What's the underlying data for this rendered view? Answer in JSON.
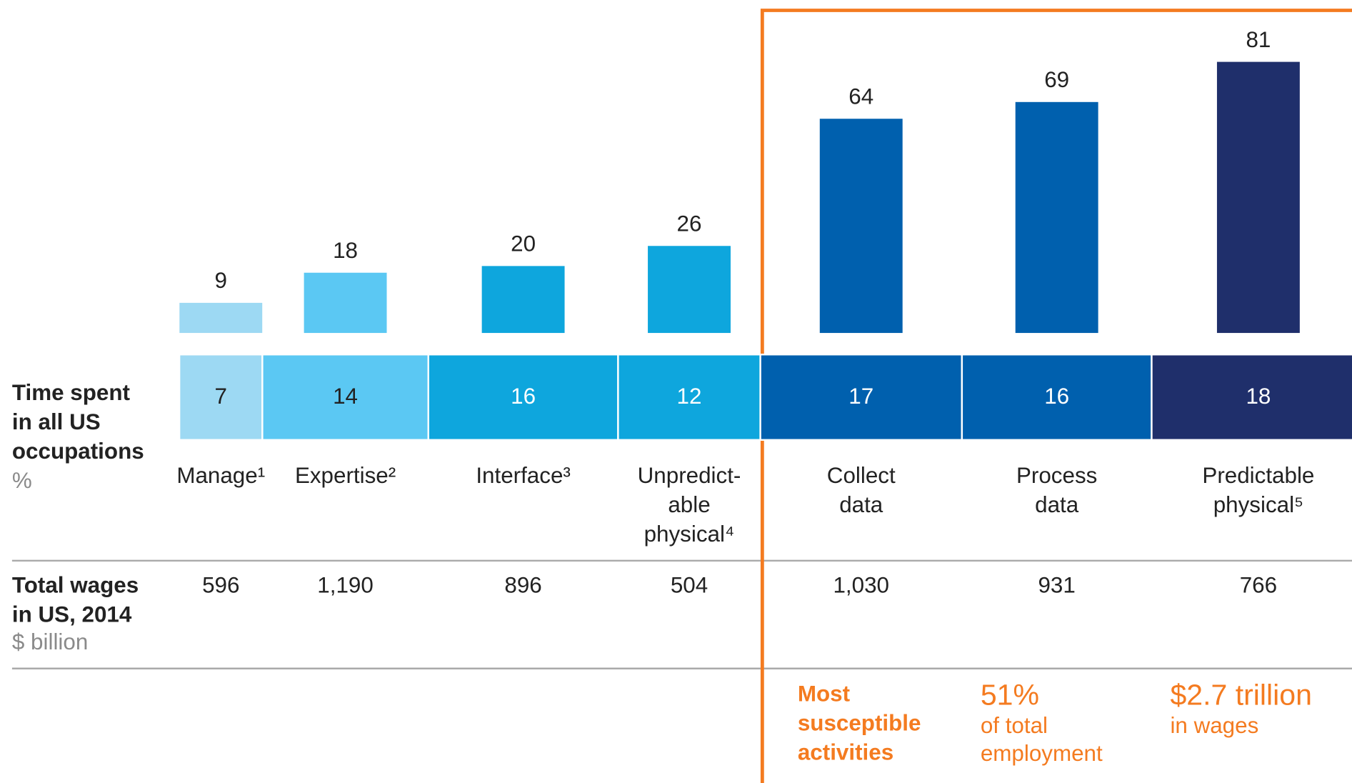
{
  "chart_data": {
    "type": "bar",
    "categories": [
      [
        "Manage¹"
      ],
      [
        "Expertise²"
      ],
      [
        "Interface³"
      ],
      [
        "Unpredict-",
        "able",
        "physical⁴"
      ],
      [
        "Collect",
        "data"
      ],
      [
        "Process",
        "data"
      ],
      [
        "Predictable",
        "physical⁵"
      ]
    ],
    "values": [
      9,
      18,
      20,
      26,
      64,
      69,
      81
    ],
    "colors": [
      "#9dd9f3",
      "#5bc8f3",
      "#0ea6dd",
      "#0ea6dd",
      "#0060ae",
      "#0060ae",
      "#1f2f6b"
    ],
    "time_spent": {
      "label": [
        "Time spent",
        "in all US",
        "occupations"
      ],
      "unit": "%",
      "values": [
        7,
        14,
        16,
        12,
        17,
        16,
        18
      ]
    },
    "wages": {
      "label": [
        "Total wages",
        "in US, 2014"
      ],
      "unit": "$ billion",
      "values": [
        596,
        1190,
        896,
        504,
        1030,
        931,
        766
      ],
      "value_labels": [
        "596",
        "1,190",
        "896",
        "504",
        "1,030",
        "931",
        "766"
      ]
    },
    "highlight": {
      "title": [
        "Most",
        "susceptible",
        "activities"
      ],
      "employment": "51%",
      "employment_note": [
        "of total",
        "employment"
      ],
      "wages": "$2.7 trillion",
      "wages_note": "in wages"
    }
  }
}
